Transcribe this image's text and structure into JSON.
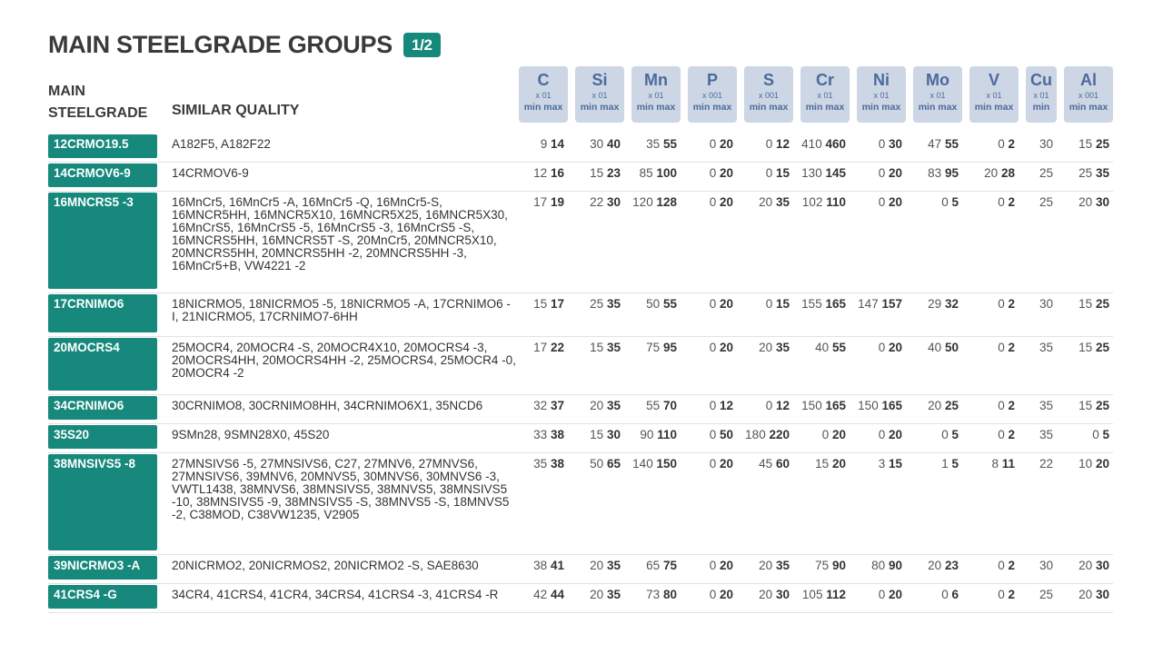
{
  "header": {
    "title": "MAIN STEELGRADE GROUPS",
    "page_badge": "1/2",
    "main_label_1": "MAIN",
    "main_label_2": "STEELGRADE",
    "similar_label": "SIMILAR QUALITY"
  },
  "elements": [
    {
      "symbol": "C",
      "unit": "x 01",
      "range": "min max"
    },
    {
      "symbol": "Si",
      "unit": "x 01",
      "range": "min max"
    },
    {
      "symbol": "Mn",
      "unit": "x 01",
      "range": "min max"
    },
    {
      "symbol": "P",
      "unit": "x 001",
      "range": "min max"
    },
    {
      "symbol": "S",
      "unit": "x 001",
      "range": "min max"
    },
    {
      "symbol": "Cr",
      "unit": "x 01",
      "range": "min max"
    },
    {
      "symbol": "Ni",
      "unit": "x 01",
      "range": "min max"
    },
    {
      "symbol": "Mo",
      "unit": "x 01",
      "range": "min max"
    },
    {
      "symbol": "V",
      "unit": "x 01",
      "range": "min max"
    },
    {
      "symbol": "Cu",
      "unit": "x 01",
      "range": "min"
    },
    {
      "symbol": "Al",
      "unit": "x 001",
      "range": "min max"
    }
  ],
  "rows": [
    {
      "grade": "12CRMO19.5",
      "similar": "A182F5, A182F22",
      "values": [
        [
          "9",
          "14"
        ],
        [
          "30",
          "40"
        ],
        [
          "35",
          "55"
        ],
        [
          "0",
          "20"
        ],
        [
          "0",
          "12"
        ],
        [
          "410",
          "460"
        ],
        [
          "0",
          "30"
        ],
        [
          "47",
          "55"
        ],
        [
          "0",
          "2"
        ],
        [
          "30",
          ""
        ],
        [
          "15",
          "25"
        ]
      ]
    },
    {
      "grade": "14CRMOV6-9",
      "similar": "14CRMOV6-9",
      "values": [
        [
          "12",
          "16"
        ],
        [
          "15",
          "23"
        ],
        [
          "85",
          "100"
        ],
        [
          "0",
          "20"
        ],
        [
          "0",
          "15"
        ],
        [
          "130",
          "145"
        ],
        [
          "0",
          "20"
        ],
        [
          "83",
          "95"
        ],
        [
          "20",
          "28"
        ],
        [
          "25",
          ""
        ],
        [
          "25",
          "35"
        ]
      ]
    },
    {
      "grade": "16MNCRS5  -3",
      "similar": "16MnCr5, 16MnCr5 -A, 16MnCr5 -Q, 16MnCr5-S, 16MNCR5HH, 16MNCR5X10, 16MNCR5X25, 16MNCR5X30, 16MnCrS5, 16MnCrS5 -5, 16MnCrS5 -3, 16MnCrS5 -S, 16MNCRS5HH, 16MNCRS5T -S, 20MnCr5, 20MNCR5X10, 20MNCRS5HH, 20MNCRS5HH -2, 20MNCRS5HH -3, 16MnCr5+B, VW4221 -2",
      "values": [
        [
          "17",
          "19"
        ],
        [
          "22",
          "30"
        ],
        [
          "120",
          "128"
        ],
        [
          "0",
          "20"
        ],
        [
          "20",
          "35"
        ],
        [
          "102",
          "110"
        ],
        [
          "0",
          "20"
        ],
        [
          "0",
          "5"
        ],
        [
          "0",
          "2"
        ],
        [
          "25",
          ""
        ],
        [
          "20",
          "30"
        ]
      ]
    },
    {
      "grade": "17CRNIMO6",
      "similar": "18NICRMO5, 18NICRMO5 -5, 18NICRMO5 -A, 17CRNIMO6 -I, 21NICRMO5, 17CRNIMO7-6HH",
      "values": [
        [
          "15",
          "17"
        ],
        [
          "25",
          "35"
        ],
        [
          "50",
          "55"
        ],
        [
          "0",
          "20"
        ],
        [
          "0",
          "15"
        ],
        [
          "155",
          "165"
        ],
        [
          "147",
          "157"
        ],
        [
          "29",
          "32"
        ],
        [
          "0",
          "2"
        ],
        [
          "30",
          ""
        ],
        [
          "15",
          "25"
        ]
      ]
    },
    {
      "grade": "20MOCRS4",
      "similar": "25MOCR4, 20MOCR4 -S, 20MOCR4X10, 20MOCRS4 -3, 20MOCRS4HH, 20MOCRS4HH -2, 25MOCRS4, 25MOCR4 -0, 20MOCR4 -2",
      "values": [
        [
          "17",
          "22"
        ],
        [
          "15",
          "35"
        ],
        [
          "75",
          "95"
        ],
        [
          "0",
          "20"
        ],
        [
          "20",
          "35"
        ],
        [
          "40",
          "55"
        ],
        [
          "0",
          "20"
        ],
        [
          "40",
          "50"
        ],
        [
          "0",
          "2"
        ],
        [
          "35",
          ""
        ],
        [
          "15",
          "25"
        ]
      ]
    },
    {
      "grade": "34CRNIMO6",
      "similar": "30CRNIMO8, 30CRNIMO8HH, 34CRNIMO6X1,  35NCD6",
      "values": [
        [
          "32",
          "37"
        ],
        [
          "20",
          "35"
        ],
        [
          "55",
          "70"
        ],
        [
          "0",
          "12"
        ],
        [
          "0",
          "12"
        ],
        [
          "150",
          "165"
        ],
        [
          "150",
          "165"
        ],
        [
          "20",
          "25"
        ],
        [
          "0",
          "2"
        ],
        [
          "35",
          ""
        ],
        [
          "15",
          "25"
        ]
      ]
    },
    {
      "grade": "35S20",
      "similar": "9SMn28, 9SMN28X0, 45S20",
      "values": [
        [
          "33",
          "38"
        ],
        [
          "15",
          "30"
        ],
        [
          "90",
          "110"
        ],
        [
          "0",
          "50"
        ],
        [
          "180",
          "220"
        ],
        [
          "0",
          "20"
        ],
        [
          "0",
          "20"
        ],
        [
          "0",
          "5"
        ],
        [
          "0",
          "2"
        ],
        [
          "35",
          ""
        ],
        [
          "0",
          "5"
        ]
      ]
    },
    {
      "grade": "38MNSIVS5 -8",
      "similar": "27MNSIVS6 -5, 27MNSIVS6, C27, 27MNV6, 27MNVS6, 27MNSIVS6, 39MNV6, 20MNVS5, 30MNVS6, 30MNVS6 -3, VWTL1438, 38MNVS6, 38MNSIVS5, 38MNVS5, 38MNSIVS5 -10, 38MNSIVS5 -9, 38MNSIVS5 -S, 38MNVS5 -S, 18MNVS5 -2, C38MOD, C38VW1235, V2905",
      "values": [
        [
          "35",
          "38"
        ],
        [
          "50",
          "65"
        ],
        [
          "140",
          "150"
        ],
        [
          "0",
          "20"
        ],
        [
          "45",
          "60"
        ],
        [
          "15",
          "20"
        ],
        [
          "3",
          "15"
        ],
        [
          "1",
          "5"
        ],
        [
          "8",
          "11"
        ],
        [
          "22",
          ""
        ],
        [
          "10",
          "20"
        ]
      ]
    },
    {
      "grade": "39NICRMO3 -A",
      "similar": "20NICRMO2, 20NICRMOS2, 20NICRMO2 -S, SAE8630",
      "values": [
        [
          "38",
          "41"
        ],
        [
          "20",
          "35"
        ],
        [
          "65",
          "75"
        ],
        [
          "0",
          "20"
        ],
        [
          "20",
          "35"
        ],
        [
          "75",
          "90"
        ],
        [
          "80",
          "90"
        ],
        [
          "20",
          "23"
        ],
        [
          "0",
          "2"
        ],
        [
          "30",
          ""
        ],
        [
          "20",
          "30"
        ]
      ]
    },
    {
      "grade": "41CRS4 -G",
      "similar": "34CR4, 41CRS4, 41CR4, 34CRS4, 41CRS4 -3, 41CRS4 -R",
      "values": [
        [
          "42",
          "44"
        ],
        [
          "20",
          "35"
        ],
        [
          "73",
          "80"
        ],
        [
          "0",
          "20"
        ],
        [
          "20",
          "30"
        ],
        [
          "105",
          "112"
        ],
        [
          "0",
          "20"
        ],
        [
          "0",
          "6"
        ],
        [
          "0",
          "2"
        ],
        [
          "25",
          ""
        ],
        [
          "20",
          "30"
        ]
      ]
    }
  ]
}
